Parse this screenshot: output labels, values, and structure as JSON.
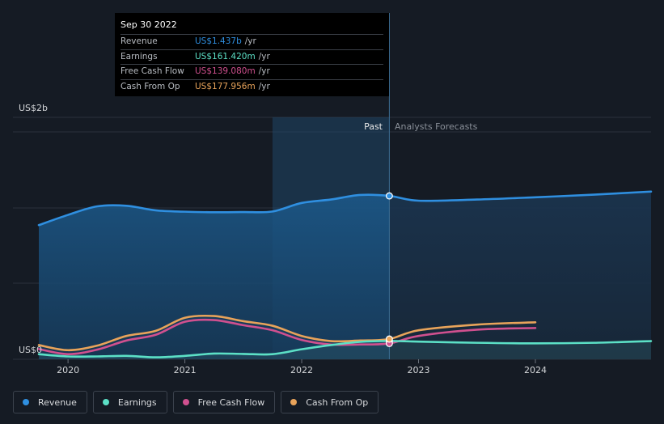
{
  "chart_data": {
    "type": "line",
    "y_axis": {
      "top_label": "US$2b",
      "bottom_label": "US$0",
      "ylim": [
        0,
        2000
      ]
    },
    "x_ticks": [
      "2020",
      "2021",
      "2022",
      "2023",
      "2024"
    ],
    "x_tick_values": [
      2020.0,
      2021.0,
      2022.0,
      2023.0,
      2024.0
    ],
    "xlim": [
      2019.75,
      2024.99
    ],
    "divider_x": 2022.75,
    "past_label": "Past",
    "forecast_label": "Analysts Forecasts",
    "grid": true,
    "series": [
      {
        "name": "Revenue",
        "color": "#2f8fe0",
        "x": [
          2019.75,
          2020.0,
          2020.25,
          2020.5,
          2020.75,
          2021.0,
          2021.25,
          2021.5,
          2021.75,
          2022.0,
          2022.25,
          2022.5,
          2022.75,
          2023.0,
          2023.5,
          2024.0,
          2024.5,
          2024.99
        ],
        "values": [
          1180,
          1270,
          1345,
          1350,
          1310,
          1298,
          1293,
          1295,
          1300,
          1375,
          1405,
          1445,
          1437,
          1395,
          1405,
          1425,
          1448,
          1475
        ]
      },
      {
        "name": "Earnings",
        "color": "#5ce0c6",
        "x": [
          2019.75,
          2020.0,
          2020.25,
          2020.5,
          2020.75,
          2021.0,
          2021.25,
          2021.5,
          2021.75,
          2022.0,
          2022.25,
          2022.5,
          2022.75,
          2023.0,
          2023.5,
          2024.0,
          2024.5,
          2024.99
        ],
        "values": [
          45,
          25,
          25,
          30,
          17,
          30,
          50,
          47,
          45,
          88,
          125,
          153,
          161,
          155,
          145,
          140,
          145,
          160
        ]
      },
      {
        "name": "Free Cash Flow",
        "color": "#d0508f",
        "x": [
          2019.75,
          2020.0,
          2020.25,
          2020.5,
          2020.75,
          2021.0,
          2021.25,
          2021.5,
          2021.75,
          2022.0,
          2022.25,
          2022.5,
          2022.75,
          2023.0,
          2023.5,
          2024.0
        ],
        "values": [
          90,
          45,
          85,
          165,
          215,
          330,
          345,
          300,
          255,
          170,
          130,
          130,
          139,
          205,
          260,
          275
        ]
      },
      {
        "name": "Cash From Op",
        "color": "#e8a35a",
        "x": [
          2019.75,
          2020.0,
          2020.25,
          2020.5,
          2020.75,
          2021.0,
          2021.25,
          2021.5,
          2021.75,
          2022.0,
          2022.25,
          2022.5,
          2022.75,
          2023.0,
          2023.5,
          2024.0
        ],
        "values": [
          125,
          80,
          120,
          205,
          250,
          365,
          380,
          335,
          295,
          205,
          160,
          165,
          178,
          255,
          305,
          325
        ]
      }
    ]
  },
  "tooltip": {
    "date": "Sep 30 2022",
    "rows": [
      {
        "label": "Revenue",
        "value": "US$1.437b",
        "unit": "/yr",
        "color": "#2f8fe0"
      },
      {
        "label": "Earnings",
        "value": "US$161.420m",
        "unit": "/yr",
        "color": "#5ce0c6"
      },
      {
        "label": "Free Cash Flow",
        "value": "US$139.080m",
        "unit": "/yr",
        "color": "#d0508f"
      },
      {
        "label": "Cash From Op",
        "value": "US$177.956m",
        "unit": "/yr",
        "color": "#e8a35a"
      }
    ]
  },
  "legend": [
    {
      "label": "Revenue",
      "color": "#2f8fe0"
    },
    {
      "label": "Earnings",
      "color": "#5ce0c6"
    },
    {
      "label": "Free Cash Flow",
      "color": "#d0508f"
    },
    {
      "label": "Cash From Op",
      "color": "#e8a35a"
    }
  ]
}
